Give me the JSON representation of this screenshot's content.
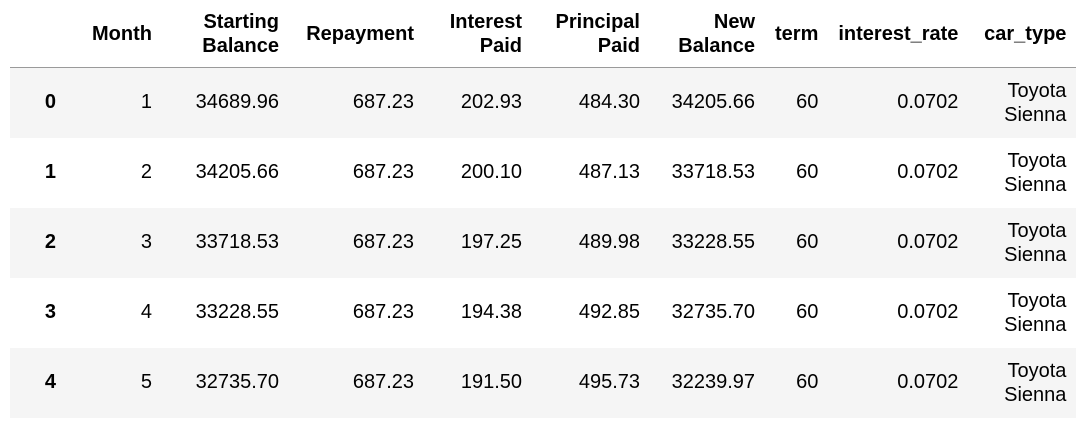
{
  "table": {
    "columns": [
      "",
      "Month",
      "Starting\nBalance",
      "Repayment",
      "Interest\nPaid",
      "Principal\nPaid",
      "New\nBalance",
      "term",
      "interest_rate",
      "car_type"
    ],
    "rows": [
      {
        "index": "0",
        "cells": [
          "1",
          "34689.96",
          "687.23",
          "202.93",
          "484.30",
          "34205.66",
          "60",
          "0.0702",
          "Toyota Sienna"
        ]
      },
      {
        "index": "1",
        "cells": [
          "2",
          "34205.66",
          "687.23",
          "200.10",
          "487.13",
          "33718.53",
          "60",
          "0.0702",
          "Toyota Sienna"
        ]
      },
      {
        "index": "2",
        "cells": [
          "3",
          "33718.53",
          "687.23",
          "197.25",
          "489.98",
          "33228.55",
          "60",
          "0.0702",
          "Toyota Sienna"
        ]
      },
      {
        "index": "3",
        "cells": [
          "4",
          "33228.55",
          "687.23",
          "194.38",
          "492.85",
          "32735.70",
          "60",
          "0.0702",
          "Toyota Sienna"
        ]
      },
      {
        "index": "4",
        "cells": [
          "5",
          "32735.70",
          "687.23",
          "191.50",
          "495.73",
          "32239.97",
          "60",
          "0.0702",
          "Toyota Sienna"
        ]
      }
    ]
  },
  "colors": {
    "stripe": "#f5f5f5",
    "header_rule": "#9a9a9a",
    "text": "#000000"
  }
}
